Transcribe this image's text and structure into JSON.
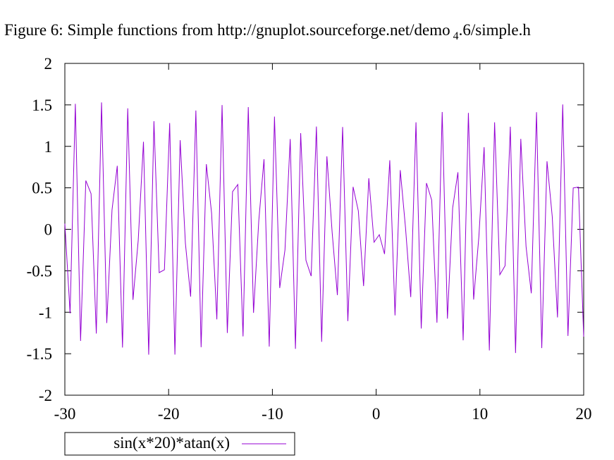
{
  "title_main": "Figure 6: Simple functions from http://gnuplot.sourceforge.net/demo",
  "title_sub": "4",
  "title_end": ".6/simple.h",
  "chart_data": {
    "type": "line",
    "title": "Figure 6: Simple functions from http://gnuplot.sourceforge.net/demo_4.6/simple.h",
    "xlabel": "",
    "ylabel": "",
    "xlim": [
      -30,
      20
    ],
    "ylim": [
      -2,
      2
    ],
    "xticks": [
      -30,
      -20,
      -10,
      0,
      10,
      20
    ],
    "yticks": [
      -2,
      -1.5,
      -1,
      -0.5,
      0,
      0.5,
      1,
      1.5,
      2
    ],
    "xtick_labels": [
      "-30",
      "-20",
      "-10",
      "0",
      "10",
      "20"
    ],
    "ytick_labels": [
      "-2",
      "-1.5",
      "-1",
      "-0.5",
      "0",
      "0.5",
      "1",
      "1.5",
      "2"
    ],
    "grid": false,
    "legend_position": "bottom-left-outside",
    "series": [
      {
        "name": "sin(x*20)*atan(x)",
        "function": "sin(x*20)*atan(x)",
        "samples": 100,
        "color": "#9400d3"
      }
    ]
  }
}
